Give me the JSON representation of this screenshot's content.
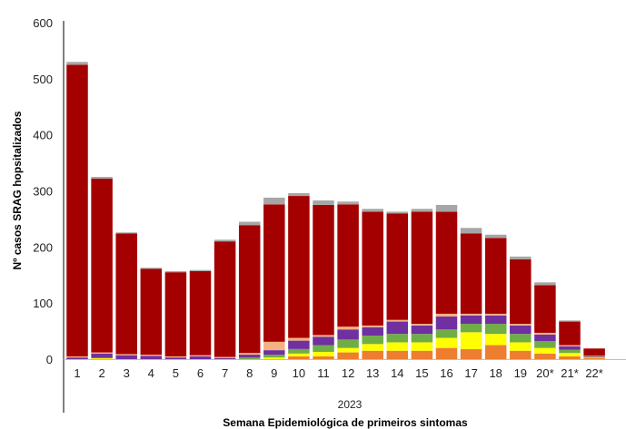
{
  "chart_data": {
    "type": "bar",
    "stacked": true,
    "categories": [
      "1",
      "2",
      "3",
      "4",
      "5",
      "6",
      "7",
      "8",
      "9",
      "10",
      "11",
      "12",
      "13",
      "14",
      "15",
      "16",
      "17",
      "18",
      "19",
      "20*",
      "21*",
      "22*"
    ],
    "group_label": "2023",
    "xlabel": "Semana Epidemiológica de primeiros sintomas",
    "ylabel": "Nº casos SRAG hopsitalizados",
    "ylim": [
      0,
      600
    ],
    "yticks": [
      "0",
      "100",
      "200",
      "300",
      "400",
      "500",
      "600"
    ],
    "ytick_values": [
      0,
      100,
      200,
      300,
      400,
      500,
      600
    ],
    "grid": false,
    "legend": "none",
    "series": [
      {
        "color": "#ed7d31",
        "values": [
          0,
          0,
          0,
          0,
          0,
          0,
          0,
          0,
          0,
          5,
          5,
          12,
          15,
          15,
          15,
          20,
          18,
          25,
          15,
          10,
          5,
          2
        ]
      },
      {
        "color": "#ffff00",
        "values": [
          0,
          2,
          0,
          0,
          0,
          0,
          0,
          0,
          3,
          5,
          8,
          8,
          12,
          15,
          15,
          18,
          30,
          20,
          15,
          10,
          6,
          1
        ]
      },
      {
        "color": "#70ad47",
        "values": [
          0,
          0,
          0,
          0,
          0,
          0,
          0,
          3,
          5,
          8,
          12,
          15,
          15,
          15,
          15,
          15,
          15,
          18,
          15,
          12,
          6,
          1
        ]
      },
      {
        "color": "#7030a0",
        "values": [
          3,
          8,
          7,
          6,
          3,
          5,
          2,
          5,
          8,
          15,
          15,
          18,
          15,
          22,
          15,
          23,
          15,
          15,
          15,
          12,
          6,
          1
        ]
      },
      {
        "color": "#f4b183",
        "values": [
          2,
          2,
          2,
          2,
          2,
          2,
          2,
          3,
          15,
          5,
          3,
          5,
          3,
          3,
          3,
          5,
          3,
          3,
          3,
          3,
          2,
          1
        ]
      },
      {
        "color": "#a50000",
        "values": [
          520,
          310,
          215,
          153,
          150,
          150,
          206,
          228,
          245,
          253,
          232,
          218,
          203,
          190,
          200,
          182,
          143,
          135,
          115,
          85,
          42,
          13
        ]
      },
      {
        "color": "#a6a6a6",
        "values": [
          5,
          3,
          2,
          2,
          2,
          2,
          3,
          6,
          12,
          5,
          8,
          5,
          5,
          3,
          5,
          12,
          10,
          6,
          5,
          5,
          2,
          0
        ]
      }
    ]
  }
}
